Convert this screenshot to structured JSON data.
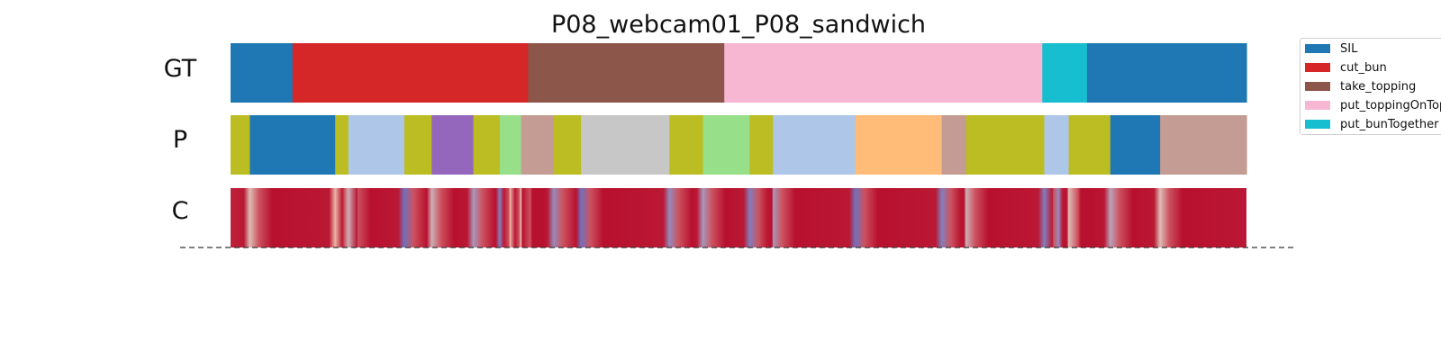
{
  "chart_data": {
    "type": "segmentation",
    "title": "P08_webcam01_P08_sandwich",
    "frames": 100,
    "rows": [
      {
        "label": "GT",
        "kind": "segments",
        "segments": [
          {
            "start": 0,
            "end": 6.1,
            "action": "SIL"
          },
          {
            "start": 6.1,
            "end": 29.3,
            "action": "cut_bun"
          },
          {
            "start": 29.3,
            "end": 48.6,
            "action": "take_topping"
          },
          {
            "start": 48.6,
            "end": 79.9,
            "action": "put_toppingOnTop"
          },
          {
            "start": 79.9,
            "end": 84.3,
            "action": "put_bunTogether"
          },
          {
            "start": 84.3,
            "end": 100,
            "action": "SIL"
          }
        ]
      },
      {
        "label": "P",
        "kind": "segments",
        "segments": [
          {
            "start": 0,
            "end": 1.9,
            "color": "#bcbd22"
          },
          {
            "start": 1.9,
            "end": 10.3,
            "color": "#1f77b4"
          },
          {
            "start": 10.3,
            "end": 11.6,
            "color": "#bcbd22"
          },
          {
            "start": 11.6,
            "end": 17.1,
            "color": "#aec7e8"
          },
          {
            "start": 17.1,
            "end": 19.8,
            "color": "#bcbd22"
          },
          {
            "start": 19.8,
            "end": 23.9,
            "color": "#9467bd"
          },
          {
            "start": 23.9,
            "end": 26.5,
            "color": "#bcbd22"
          },
          {
            "start": 26.5,
            "end": 28.6,
            "color": "#98df8a"
          },
          {
            "start": 28.6,
            "end": 31.8,
            "color": "#c49c94"
          },
          {
            "start": 31.8,
            "end": 34.5,
            "color": "#bcbd22"
          },
          {
            "start": 34.5,
            "end": 43.2,
            "color": "#c7c7c7"
          },
          {
            "start": 43.2,
            "end": 46.5,
            "color": "#bcbd22"
          },
          {
            "start": 46.5,
            "end": 51.1,
            "color": "#98df8a"
          },
          {
            "start": 51.1,
            "end": 53.4,
            "color": "#bcbd22"
          },
          {
            "start": 53.4,
            "end": 61.5,
            "color": "#aec7e8"
          },
          {
            "start": 61.5,
            "end": 70.0,
            "color": "#ffbb78"
          },
          {
            "start": 70.0,
            "end": 72.4,
            "color": "#c49c94"
          },
          {
            "start": 72.4,
            "end": 80.1,
            "color": "#bcbd22"
          },
          {
            "start": 80.1,
            "end": 82.5,
            "color": "#aec7e8"
          },
          {
            "start": 82.5,
            "end": 86.6,
            "color": "#bcbd22"
          },
          {
            "start": 86.6,
            "end": 91.5,
            "color": "#1f77b4"
          },
          {
            "start": 91.5,
            "end": 100,
            "color": "#c49c94"
          }
        ]
      },
      {
        "label": "C",
        "kind": "confidence",
        "colormap": "coolwarm",
        "dips": [
          {
            "at": 1.9,
            "value": 0.45
          },
          {
            "at": 10.3,
            "value": 0.55
          },
          {
            "at": 11.6,
            "value": 0.4
          },
          {
            "at": 17.1,
            "value": 0.15
          },
          {
            "at": 19.8,
            "value": 0.4
          },
          {
            "at": 23.9,
            "value": 0.3
          },
          {
            "at": 26.5,
            "value": 0.2
          },
          {
            "at": 27.5,
            "value": 0.55
          },
          {
            "at": 28.6,
            "value": 0.5
          },
          {
            "at": 31.8,
            "value": 0.25
          },
          {
            "at": 34.5,
            "value": 0.15
          },
          {
            "at": 43.2,
            "value": 0.25
          },
          {
            "at": 46.5,
            "value": 0.3
          },
          {
            "at": 51.1,
            "value": 0.2
          },
          {
            "at": 53.4,
            "value": 0.3
          },
          {
            "at": 61.5,
            "value": 0.15
          },
          {
            "at": 70.0,
            "value": 0.2
          },
          {
            "at": 72.4,
            "value": 0.4
          },
          {
            "at": 80.1,
            "value": 0.2
          },
          {
            "at": 81.5,
            "value": 0.25
          },
          {
            "at": 82.5,
            "value": 0.45
          },
          {
            "at": 86.6,
            "value": 0.35
          },
          {
            "at": 91.5,
            "value": 0.45
          }
        ]
      }
    ],
    "legend": [
      {
        "label": "SIL",
        "color": "#1f77b4"
      },
      {
        "label": "cut_bun",
        "color": "#d62728"
      },
      {
        "label": "take_topping",
        "color": "#8c564b"
      },
      {
        "label": "put_toppingOnTop",
        "color": "#f7b6d2"
      },
      {
        "label": "put_bunTogether",
        "color": "#17becf"
      }
    ],
    "legend_position": "top-right"
  }
}
